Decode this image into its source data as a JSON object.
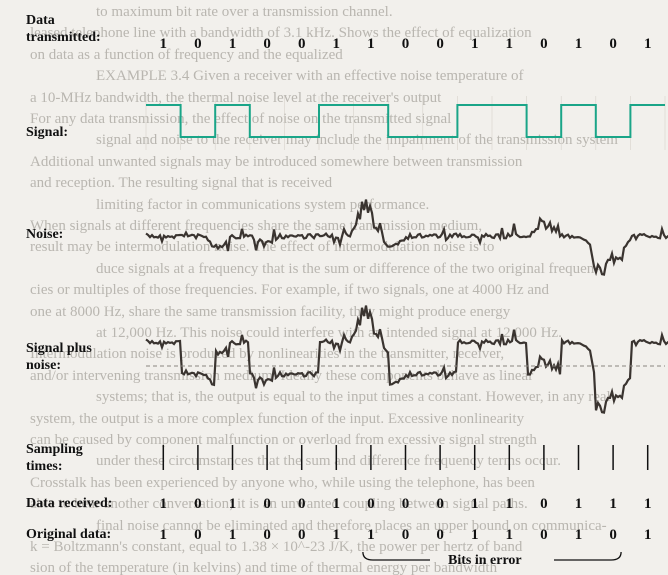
{
  "background_text": [
    "to maximum bit rate over a transmission channel.",
    "leased telephone line with a bandwidth of 3.1 kHz. Shows the effect of equalization",
    "on data as a function of frequency and the equalized",
    "EXAMPLE 3.4 Given a receiver with an effective noise temperature of",
    "a 10-MHz bandwidth, the thermal noise level at the receiver's output",
    "For any data transmission, the effect of noise on the transmitted signal",
    "signal and noise to the receiver may include the impairment of the transmission system",
    "Additional unwanted signals may be introduced somewhere between transmission",
    "and reception. The resulting signal that is received",
    "limiting factor in communications system performance.",
    "When signals at different frequencies share the same transmission medium,",
    "result may be intermodulation noise. The effect of intermodulation noise is to",
    "duce signals at a frequency that is the sum or difference of the two original frequen-",
    "cies or multiples of those frequencies. For example, if two signals, one at 4000 Hz and",
    "one at 8000 Hz, share the same transmission facility, they might produce energy",
    "at 12,000 Hz. This noise could interfere with an intended signal at 12,000 Hz.",
    "Intermodulation noise is produced by nonlinearities in the transmitter, receiver,",
    "and/or intervening transmission medium. Ideally these components behave as linear",
    "systems; that is, the output is equal to the input times a constant. However, in any real",
    "system, the output is a more complex function of the input. Excessive nonlinearity",
    "can be caused by component malfunction or overload from excessive signal strength",
    "under these circumstances that the sum and difference frequency terms occur.",
    "Crosstalk has been experienced by anyone who, while using the telephone, has been",
    "able to hear another conversation; it is an unwanted coupling between signal paths.",
    "final noise cannot be eliminated and therefore places an upper bound on communica-",
    "k = Boltzmann's constant, equal to 1.38 × 10^-23 J/K, the power per hertz of band",
    "sion of the temperature (in kelvins) and time of thermal energy per bandwidth"
  ],
  "rows": {
    "data_transmitted": {
      "label": "Data\ntransmitted:",
      "bits": [
        "1",
        "0",
        "1",
        "0",
        "0",
        "1",
        "1",
        "0",
        "0",
        "1",
        "1",
        "0",
        "1",
        "0",
        "1"
      ]
    },
    "signal": {
      "label": "Signal:"
    },
    "noise": {
      "label": "Noise:"
    },
    "signal_plus_noise": {
      "label": "Signal plus\nnoise:"
    },
    "sampling_times": {
      "label": "Sampling\ntimes:"
    },
    "data_received": {
      "label": "Data received:",
      "bits": [
        "1",
        "0",
        "1",
        "0",
        "0",
        "1",
        "0",
        "0",
        "0",
        "1",
        "1",
        "0",
        "1",
        "1",
        "1"
      ]
    },
    "original_data": {
      "label": "Original data:",
      "bits": [
        "1",
        "0",
        "1",
        "0",
        "0",
        "1",
        "1",
        "0",
        "0",
        "1",
        "1",
        "0",
        "1",
        "0",
        "1"
      ]
    }
  },
  "bits_in_error_label": "Bits in error",
  "colors": {
    "signal": "#1aa588",
    "noise": "#3a3430",
    "ink": "#111111",
    "background_text": "#b9b6b0"
  }
}
